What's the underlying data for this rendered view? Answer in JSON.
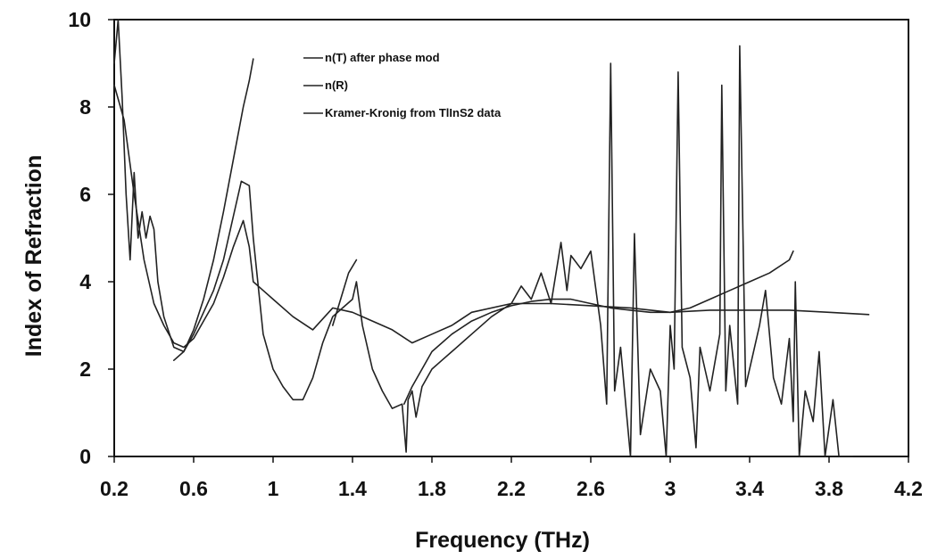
{
  "chart_data": {
    "type": "line",
    "title": "",
    "xlabel": "Frequency (THz)",
    "ylabel": "Index of Refraction",
    "xlim": [
      0.2,
      4.2
    ],
    "ylim": [
      0,
      10
    ],
    "xticks": [
      0.2,
      0.6,
      1,
      1.4,
      1.8,
      2.2,
      2.6,
      3,
      3.4,
      3.8,
      4.2
    ],
    "xtick_labels": [
      "0.2",
      "0.6",
      "1",
      "1.4",
      "1.8",
      "2.2",
      "2.6",
      "3",
      "3.4",
      "3.8",
      "4.2"
    ],
    "yticks": [
      0,
      2,
      4,
      6,
      8,
      10
    ],
    "ytick_labels": [
      "0",
      "2",
      "4",
      "6",
      "8",
      "10"
    ],
    "grid": false,
    "legend_position": "top-center",
    "series": [
      {
        "name": "n(T) after phase mod",
        "x": [
          0.5,
          0.55,
          0.6,
          0.65,
          0.7,
          0.75,
          0.8,
          0.85,
          0.88,
          0.9,
          1.3,
          1.34,
          1.38,
          1.42,
          1.66,
          1.7,
          1.75,
          1.8,
          1.9,
          2.0,
          2.1,
          2.2,
          2.3,
          2.4,
          2.5,
          2.6,
          2.7,
          2.8,
          2.9,
          3.0,
          3.1,
          3.2,
          3.3,
          3.4,
          3.5,
          3.6,
          3.62
        ],
        "y": [
          2.2,
          2.4,
          2.9,
          3.6,
          4.5,
          5.6,
          6.8,
          8.0,
          8.6,
          9.1,
          3.0,
          3.6,
          4.2,
          4.5,
          1.2,
          1.6,
          2.0,
          2.4,
          2.8,
          3.1,
          3.3,
          3.45,
          3.55,
          3.6,
          3.6,
          3.5,
          3.4,
          3.35,
          3.3,
          3.3,
          3.4,
          3.6,
          3.8,
          4.0,
          4.2,
          4.5,
          4.7
        ]
      },
      {
        "name": "n(R)",
        "x": [
          0.2,
          0.22,
          0.24,
          0.26,
          0.28,
          0.3,
          0.32,
          0.34,
          0.36,
          0.38,
          0.4,
          0.42,
          0.45,
          0.5,
          0.55,
          0.6,
          0.65,
          0.7,
          0.75,
          0.8,
          0.84,
          0.88,
          0.9,
          0.95,
          1.0,
          1.05,
          1.1,
          1.15,
          1.2,
          1.25,
          1.3,
          1.35,
          1.4,
          1.42,
          1.45,
          1.5,
          1.55,
          1.6,
          1.65,
          1.67,
          1.68,
          1.7,
          1.72,
          1.75,
          1.8,
          1.85,
          1.9,
          2.0,
          2.1,
          2.2,
          2.25,
          2.3,
          2.35,
          2.4,
          2.45,
          2.48,
          2.5,
          2.55,
          2.6,
          2.65,
          2.68,
          2.7,
          2.72,
          2.75,
          2.78,
          2.8,
          2.82,
          2.85,
          2.9,
          2.95,
          2.98,
          3.0,
          3.02,
          3.04,
          3.06,
          3.1,
          3.13,
          3.15,
          3.2,
          3.25,
          3.26,
          3.28,
          3.3,
          3.34,
          3.35,
          3.38,
          3.45,
          3.48,
          3.52,
          3.56,
          3.6,
          3.62,
          3.63,
          3.65,
          3.68,
          3.72,
          3.75,
          3.78,
          3.82,
          3.85,
          3.9,
          3.92
        ],
        "y": [
          9.0,
          10.0,
          8.2,
          6.0,
          4.5,
          6.5,
          5.0,
          5.6,
          5.0,
          5.5,
          5.2,
          4.0,
          3.2,
          2.5,
          2.4,
          2.8,
          3.3,
          3.8,
          4.5,
          5.5,
          6.3,
          6.2,
          5.0,
          2.8,
          2.0,
          1.6,
          1.3,
          1.3,
          1.8,
          2.6,
          3.2,
          3.4,
          3.6,
          4.0,
          3.0,
          2.0,
          1.5,
          1.1,
          1.2,
          0.1,
          1.3,
          1.5,
          0.9,
          1.6,
          2.0,
          2.2,
          2.4,
          2.8,
          3.2,
          3.5,
          3.9,
          3.6,
          4.2,
          3.5,
          4.9,
          3.8,
          4.6,
          4.3,
          4.7,
          3.0,
          1.2,
          9.0,
          1.5,
          2.5,
          1.0,
          0.0,
          5.1,
          0.5,
          2.0,
          1.5,
          0.0,
          3.0,
          2.0,
          8.8,
          2.5,
          1.8,
          0.2,
          2.5,
          1.5,
          2.8,
          8.5,
          1.5,
          3.0,
          1.2,
          9.4,
          1.6,
          3.0,
          3.8,
          1.8,
          1.2,
          2.7,
          0.8,
          4.0,
          0.0,
          1.5,
          0.8,
          2.4,
          0.0,
          1.3,
          0.0,
          0.0,
          0.0
        ]
      },
      {
        "name": "Kramer-Kronig from TlInS2 data",
        "x": [
          0.2,
          0.25,
          0.3,
          0.35,
          0.4,
          0.45,
          0.5,
          0.55,
          0.6,
          0.65,
          0.7,
          0.75,
          0.8,
          0.85,
          0.88,
          0.9,
          0.95,
          1.0,
          1.1,
          1.2,
          1.3,
          1.4,
          1.5,
          1.6,
          1.7,
          1.8,
          1.9,
          2.0,
          2.2,
          2.4,
          2.6,
          2.8,
          3.0,
          3.2,
          3.4,
          3.6,
          3.8,
          4.0
        ],
        "y": [
          8.5,
          7.7,
          6.0,
          4.5,
          3.5,
          3.0,
          2.6,
          2.5,
          2.7,
          3.1,
          3.5,
          4.1,
          4.8,
          5.4,
          4.8,
          4.0,
          3.8,
          3.6,
          3.2,
          2.9,
          3.4,
          3.3,
          3.1,
          2.9,
          2.6,
          2.8,
          3.0,
          3.3,
          3.5,
          3.5,
          3.45,
          3.4,
          3.3,
          3.35,
          3.35,
          3.35,
          3.3,
          3.25
        ]
      }
    ]
  }
}
